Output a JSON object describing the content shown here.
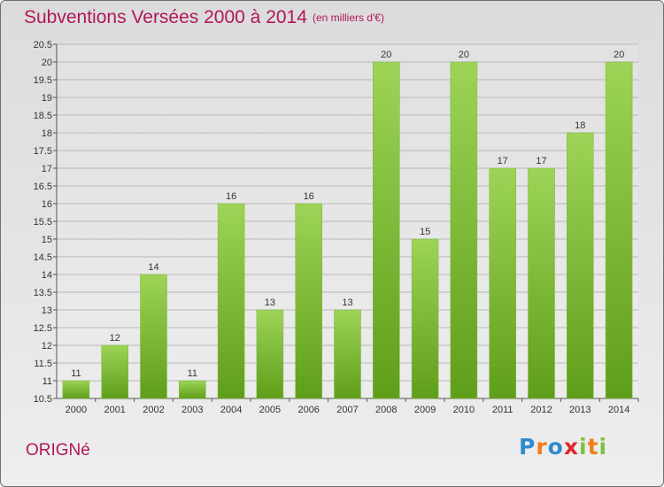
{
  "header": {
    "title": "Subventions Versées 2000 à 2014",
    "subtitle": "(en milliers d'€)"
  },
  "footer": {
    "commune": "ORIGNé",
    "logo": {
      "text": "Proxiti",
      "letter_colors": [
        "#2e8bd1",
        "#f07d1a",
        "#2e8bd1",
        "#e0262f",
        "#7cc242",
        "#f07d1a",
        "#7cc242"
      ]
    }
  },
  "colors": {
    "title": "#b0185a",
    "bar_top": "#9dd457",
    "bar_bottom": "#5f9e1a",
    "grid": "#b8b8b8",
    "text": "#333333"
  },
  "chart_data": {
    "type": "bar",
    "title": "Subventions Versées 2000 à 2014",
    "subtitle": "(en milliers d'€)",
    "categories": [
      "2000",
      "2001",
      "2002",
      "2003",
      "2004",
      "2005",
      "2006",
      "2007",
      "2008",
      "2009",
      "2010",
      "2011",
      "2012",
      "2013",
      "2014"
    ],
    "values": [
      11,
      12,
      14,
      11,
      16,
      13,
      16,
      13,
      20,
      15,
      20,
      17,
      17,
      18,
      20
    ],
    "data_labels": [
      "11",
      "12",
      "14",
      "11",
      "16",
      "13",
      "16",
      "13",
      "20",
      "15",
      "20",
      "17",
      "17",
      "18",
      "20"
    ],
    "ylim": [
      10.5,
      20.5
    ],
    "yticks": [
      "10.5",
      "11",
      "11.5",
      "12",
      "12.5",
      "13",
      "13.5",
      "14",
      "14.5",
      "15",
      "15.5",
      "16",
      "16.5",
      "17",
      "17.5",
      "18",
      "18.5",
      "19",
      "19.5",
      "20",
      "20.5"
    ],
    "grid": true,
    "legend": "none",
    "xlabel": "",
    "ylabel": ""
  }
}
